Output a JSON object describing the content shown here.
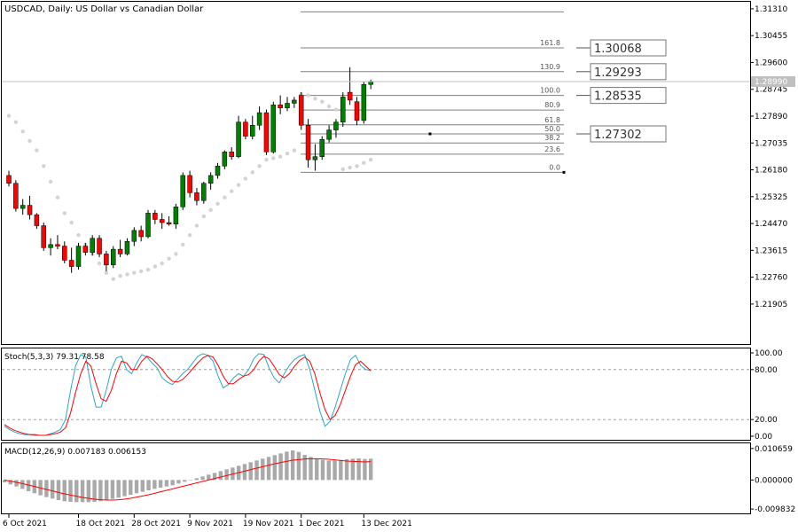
{
  "chart_data": {
    "type": "candlestick",
    "title": "USDCAD, Daily:  US Dollar vs Canadian Dollar",
    "symbol": "USDCAD",
    "timeframe": "Daily",
    "description": "US Dollar vs Canadian Dollar",
    "colors": {
      "bull": "#008000",
      "bear": "#ff0000",
      "psar": "#d3d3d3",
      "stoch_main": "#2aa7c9",
      "stoch_signal": "#ff0000",
      "macd_hist": "#a9a9a9",
      "macd_signal": "#ff0000",
      "grid_line": "#808080"
    },
    "price_axis": {
      "labels": [
        "1.31310",
        "1.30455",
        "1.29600",
        "1.28745",
        "1.27890",
        "1.27035",
        "1.26180",
        "1.25325",
        "1.24470",
        "1.23615",
        "1.22760",
        "1.21905"
      ],
      "ylim": [
        1.2145,
        1.3142
      ]
    },
    "current_price": "1.28990",
    "time_axis": {
      "labels": [
        "6 Oct 2021",
        "18 Oct 2021",
        "28 Oct 2021",
        "9 Nov 2021",
        "19 Nov 2021",
        "1 Dec 2021",
        "13 Dec 2021"
      ],
      "label_bar_index": [
        0,
        10,
        18,
        26,
        34,
        42,
        51
      ]
    },
    "ohlc": [
      [
        1.26,
        1.2615,
        1.2565,
        1.2575
      ],
      [
        1.2575,
        1.2585,
        1.2485,
        1.2495
      ],
      [
        1.2495,
        1.2525,
        1.2475,
        1.2505
      ],
      [
        1.2505,
        1.2535,
        1.246,
        1.2475
      ],
      [
        1.2475,
        1.248,
        1.243,
        1.244
      ],
      [
        1.244,
        1.245,
        1.236,
        1.237
      ],
      [
        1.237,
        1.24,
        1.2345,
        1.238
      ],
      [
        1.238,
        1.241,
        1.2365,
        1.2375
      ],
      [
        1.2375,
        1.239,
        1.232,
        1.233
      ],
      [
        1.233,
        1.237,
        1.229,
        1.231
      ],
      [
        1.231,
        1.2385,
        1.23,
        1.2375
      ],
      [
        1.2375,
        1.2385,
        1.2345,
        1.2355
      ],
      [
        1.2355,
        1.241,
        1.2345,
        1.24
      ],
      [
        1.24,
        1.241,
        1.234,
        1.235
      ],
      [
        1.235,
        1.236,
        1.2295,
        1.2315
      ],
      [
        1.2315,
        1.2375,
        1.2305,
        1.2365
      ],
      [
        1.2365,
        1.2395,
        1.234,
        1.235
      ],
      [
        1.235,
        1.24,
        1.2345,
        1.239
      ],
      [
        1.239,
        1.2435,
        1.2375,
        1.2425
      ],
      [
        1.2425,
        1.244,
        1.239,
        1.2405
      ],
      [
        1.2405,
        1.249,
        1.24,
        1.248
      ],
      [
        1.248,
        1.249,
        1.2445,
        1.246
      ],
      [
        1.246,
        1.248,
        1.243,
        1.245
      ],
      [
        1.245,
        1.247,
        1.244,
        1.2445
      ],
      [
        1.2445,
        1.251,
        1.243,
        1.25
      ],
      [
        1.25,
        1.261,
        1.249,
        1.26
      ],
      [
        1.26,
        1.2615,
        1.253,
        1.2545
      ],
      [
        1.2545,
        1.256,
        1.2505,
        1.252
      ],
      [
        1.252,
        1.258,
        1.251,
        1.2575
      ],
      [
        1.2575,
        1.261,
        1.2555,
        1.26
      ],
      [
        1.26,
        1.264,
        1.259,
        1.263
      ],
      [
        1.263,
        1.268,
        1.262,
        1.2675
      ],
      [
        1.2675,
        1.269,
        1.265,
        1.266
      ],
      [
        1.266,
        1.279,
        1.2655,
        1.277
      ],
      [
        1.277,
        1.278,
        1.2715,
        1.2725
      ],
      [
        1.2725,
        1.279,
        1.2715,
        1.276
      ],
      [
        1.276,
        1.282,
        1.2745,
        1.28
      ],
      [
        1.28,
        1.281,
        1.2665,
        1.2675
      ],
      [
        1.2675,
        1.2835,
        1.267,
        1.2825
      ],
      [
        1.2825,
        1.2855,
        1.2795,
        1.2815
      ],
      [
        1.2815,
        1.285,
        1.2805,
        1.283
      ],
      [
        1.283,
        1.285,
        1.2815,
        1.284
      ],
      [
        1.2855,
        1.2865,
        1.2745,
        1.276
      ],
      [
        1.276,
        1.278,
        1.2625,
        1.265
      ],
      [
        1.265,
        1.27,
        1.2615,
        1.266
      ],
      [
        1.266,
        1.2725,
        1.265,
        1.2715
      ],
      [
        1.2715,
        1.276,
        1.2705,
        1.2745
      ],
      [
        1.2745,
        1.278,
        1.272,
        1.277
      ],
      [
        1.277,
        1.2865,
        1.2755,
        1.285
      ],
      [
        1.2865,
        1.2945,
        1.2825,
        1.284
      ],
      [
        1.2835,
        1.285,
        1.276,
        1.2775
      ],
      [
        1.2775,
        1.29,
        1.2765,
        1.289
      ],
      [
        1.289,
        1.2905,
        1.2875,
        1.29
      ]
    ],
    "parabolic_sar": [
      1.279,
      1.277,
      1.274,
      1.271,
      1.268,
      1.263,
      1.258,
      1.253,
      1.248,
      1.245,
      1.241,
      1.238,
      1.235,
      1.232,
      1.229,
      1.227,
      1.228,
      1.2285,
      1.229,
      1.2295,
      1.23,
      1.231,
      1.232,
      1.2335,
      1.235,
      1.238,
      1.241,
      1.244,
      1.247,
      1.249,
      1.251,
      1.253,
      1.255,
      1.257,
      1.259,
      1.261,
      1.263,
      1.265,
      1.2655,
      1.266,
      1.267,
      1.268,
      1.286,
      1.2855,
      1.2845,
      1.2835,
      1.282,
      1.281,
      1.262,
      1.2625,
      1.263,
      1.264,
      1.265
    ],
    "fibonacci": {
      "levels": [
        {
          "label": "161.8",
          "box": "1.30068"
        },
        {
          "label": "130.9",
          "box": "1.29293"
        },
        {
          "label": "100.0",
          "box": "1.28535"
        },
        {
          "label": "80.9"
        },
        {
          "label": "61.8"
        },
        {
          "label": "50.0",
          "box": "1.27302"
        },
        {
          "label": "38.2"
        },
        {
          "label": "23.6"
        },
        {
          "label": "0.0"
        }
      ],
      "price_0": 1.261,
      "price_100": 1.2855,
      "extra_top": 1.3121
    },
    "stochastic": {
      "header": "Stoch(5,3,3) 79.31 78.58",
      "levels_labels": [
        "100.00",
        "80.00",
        "20.00",
        "0.00"
      ],
      "main": [
        12,
        8,
        5,
        3,
        2,
        2,
        1,
        1,
        1,
        3,
        5,
        8,
        20,
        55,
        85,
        98,
        95,
        60,
        35,
        35,
        55,
        80,
        94,
        96,
        80,
        75,
        88,
        98,
        95,
        88,
        82,
        70,
        65,
        62,
        68,
        75,
        80,
        88,
        96,
        99,
        97,
        90,
        72,
        58,
        62,
        70,
        75,
        72,
        80,
        93,
        99,
        98,
        82,
        70,
        64,
        75,
        85,
        92,
        96,
        98,
        80,
        55,
        30,
        12,
        18,
        35,
        55,
        75,
        92,
        97,
        85,
        80,
        79
      ],
      "signal": [
        14,
        10,
        7,
        5,
        3,
        2,
        2,
        1,
        1,
        2,
        3,
        5,
        10,
        28,
        53,
        75,
        90,
        84,
        63,
        45,
        42,
        55,
        75,
        90,
        88,
        80,
        80,
        90,
        96,
        93,
        87,
        80,
        72,
        66,
        65,
        68,
        74,
        81,
        88,
        94,
        97,
        95,
        85,
        72,
        63,
        63,
        68,
        72,
        74,
        80,
        90,
        96,
        93,
        84,
        74,
        70,
        75,
        84,
        91,
        95,
        90,
        75,
        52,
        32,
        20,
        25,
        38,
        55,
        72,
        86,
        90,
        84,
        78.6
      ],
      "ylim": [
        0,
        100
      ]
    },
    "macd": {
      "header": "MACD(12,26,9) 0.007183 0.006153",
      "axis_labels": [
        "0.010659",
        "0.000000",
        "-0.009832"
      ],
      "ylim": [
        -0.0107,
        0.0112
      ],
      "histogram": [
        -0.0008,
        -0.0015,
        -0.0022,
        -0.003,
        -0.0038,
        -0.0045,
        -0.0052,
        -0.0058,
        -0.0063,
        -0.0068,
        -0.0072,
        -0.0074,
        -0.0075,
        -0.0075,
        -0.0075,
        -0.0074,
        -0.0072,
        -0.0068,
        -0.0064,
        -0.006,
        -0.0055,
        -0.005,
        -0.0045,
        -0.004,
        -0.0035,
        -0.003,
        -0.0026,
        -0.0022,
        -0.0018,
        -0.0012,
        -0.0006,
        0.0,
        0.0006,
        0.0012,
        0.0018,
        0.0024,
        0.003,
        0.0036,
        0.0042,
        0.0048,
        0.0054,
        0.006,
        0.0066,
        0.0072,
        0.0078,
        0.0084,
        0.009,
        0.0096,
        0.01,
        0.0095,
        0.0085,
        0.0078,
        0.0072,
        0.0068,
        0.0066,
        0.0066,
        0.0068,
        0.007,
        0.0072,
        0.0073,
        0.0071,
        0.0072
      ],
      "signal": [
        0.0,
        -0.0004,
        -0.0008,
        -0.0012,
        -0.0017,
        -0.0022,
        -0.0027,
        -0.0032,
        -0.0037,
        -0.0042,
        -0.0047,
        -0.0051,
        -0.0055,
        -0.0059,
        -0.0062,
        -0.0065,
        -0.0067,
        -0.0068,
        -0.0068,
        -0.0067,
        -0.0065,
        -0.0062,
        -0.0058,
        -0.0054,
        -0.005,
        -0.0045,
        -0.004,
        -0.0035,
        -0.003,
        -0.0025,
        -0.002,
        -0.0015,
        -0.001,
        -0.0005,
        0.0,
        0.0005,
        0.001,
        0.0015,
        0.002,
        0.0025,
        0.003,
        0.0035,
        0.004,
        0.0045,
        0.005,
        0.0055,
        0.0059,
        0.0063,
        0.0067,
        0.0069,
        0.0071,
        0.0072,
        0.0072,
        0.0071,
        0.007,
        0.0068,
        0.0066,
        0.0064,
        0.0063,
        0.0062,
        0.0061,
        0.0062
      ]
    }
  }
}
